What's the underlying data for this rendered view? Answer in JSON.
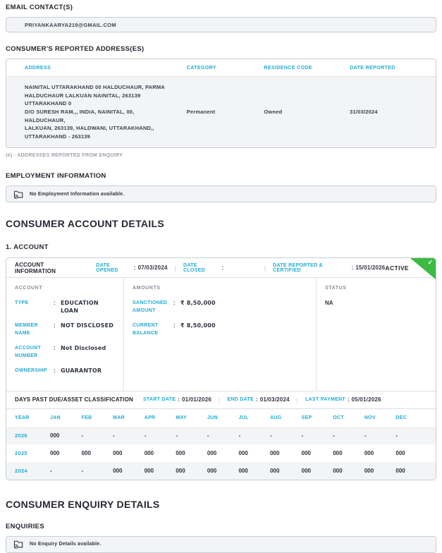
{
  "colors": {
    "accent": "#21acd4",
    "green": "#3dba44",
    "light_row": "#f2f4f6"
  },
  "email_section": {
    "title": "EMAIL CONTACT(S)",
    "email": "PRIYANKAARYA219@GMAIL.COM"
  },
  "address_section": {
    "title": "CONSUMER'S REPORTED ADDRESS(ES)",
    "headers": {
      "address": "ADDRESS",
      "category": "CATEGORY",
      "residence": "RESIDENCE CODE",
      "date": "DATE REPORTED"
    },
    "row": {
      "address": "NAINITAL UTTARAKHAND 00 HALDUCHAUR, PARMA\nHALDUCHAUR LALKUAN NAINITAL, 263139 UTTARAKHAND 0\nD/O SURESH RAM,,, INDIA, NAINITAL, 00, HALDUCHAUR,\nLALKUAN, 263139, HALDWANI, UTTARAKHAND,,\nUTTARAKHAND - 263139",
      "category": "Permanent",
      "residence": "Owned",
      "date": "31/03/2024"
    },
    "footnote": "(e) - ADDRESSES REPORTED FROM ENQUIRY"
  },
  "employment_section": {
    "title": "EMPLOYMENT INFORMATION",
    "empty_message": "No Employment Information available."
  },
  "account_section": {
    "title": "CONSUMER ACCOUNT DETAILS",
    "subtitle": "1. ACCOUNT",
    "header": {
      "label": "ACCOUNT INFORMATION",
      "date_opened_label": "DATE OPENED",
      "date_opened": "07/03/2024",
      "date_closed_label": "DATE CLOSED",
      "date_closed": "",
      "date_reported_label": "DATE REPORTED & CERTIFIED",
      "date_reported": "15/01/2026",
      "status_badge": "ACTIVE"
    },
    "account_col": {
      "title": "ACCOUNT",
      "fields": [
        {
          "label": "TYPE",
          "value": "EDUCATION LOAN"
        },
        {
          "label": "MEMBER NAME",
          "value": "NOT DISCLOSED"
        },
        {
          "label": "ACCOUNT NUMBER",
          "value": "Not Disclosed"
        },
        {
          "label": "OWNERSHIP",
          "value": "GUARANTOR"
        }
      ]
    },
    "amounts_col": {
      "title": "AMOUNTS",
      "fields": [
        {
          "label": "SANCTIONED AMOUNT",
          "value": "₹ 8,50,000"
        },
        {
          "label": "CURRENT BALANCE",
          "value": "₹ 8,50,000"
        }
      ]
    },
    "status_col": {
      "title": "STATUS",
      "value": "NA"
    },
    "dpd": {
      "label": "DAYS PAST DUE/ASSET CLASSIFICATION",
      "start_date_label": "START DATE",
      "start_date": "01/01/2026",
      "end_date_label": "END DATE",
      "end_date": "01/03/2024",
      "last_payment_label": "LAST PAYMENT",
      "last_payment": "05/01/2026",
      "columns": [
        "YEAR",
        "JAN",
        "FEB",
        "MAR",
        "APR",
        "MAY",
        "JUN",
        "JUL",
        "AUG",
        "SEP",
        "OCT",
        "NOV",
        "DEC"
      ],
      "rows": [
        {
          "year": "2026",
          "values": [
            "000",
            "-",
            "-",
            "-",
            "-",
            "-",
            "-",
            "-",
            "-",
            "-",
            "-",
            "-"
          ]
        },
        {
          "year": "2025",
          "values": [
            "000",
            "000",
            "000",
            "000",
            "000",
            "000",
            "000",
            "000",
            "000",
            "000",
            "000",
            "000"
          ]
        },
        {
          "year": "2024",
          "values": [
            "-",
            "-",
            "000",
            "000",
            "000",
            "000",
            "000",
            "000",
            "000",
            "000",
            "000",
            "000"
          ]
        }
      ]
    }
  },
  "enquiry_section": {
    "title": "CONSUMER ENQUIRY DETAILS",
    "subtitle": "ENQUIRIES",
    "empty_message": "No Enquiry Details available."
  }
}
